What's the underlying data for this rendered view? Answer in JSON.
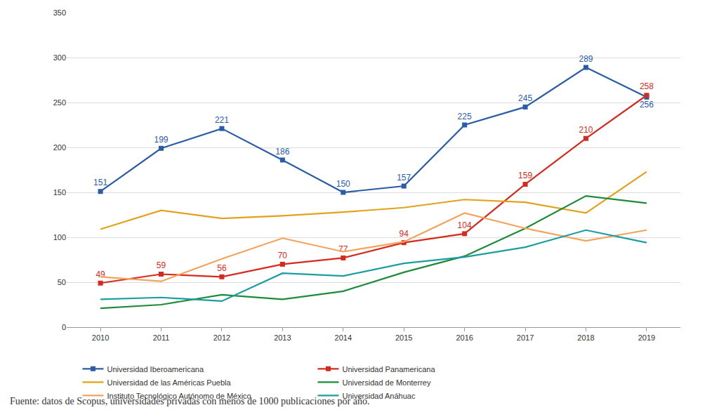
{
  "chart_data": {
    "type": "line",
    "categories": [
      "2010",
      "2011",
      "2012",
      "2013",
      "2014",
      "2015",
      "2016",
      "2017",
      "2018",
      "2019"
    ],
    "series": [
      {
        "name": "Universidad Iberoamericana",
        "color": "#2a5ca8",
        "marker": "square",
        "data_labels": true,
        "values": [
          151,
          199,
          221,
          186,
          150,
          157,
          225,
          245,
          289,
          256
        ]
      },
      {
        "name": "Universidad Panamericana",
        "color": "#d52b1e",
        "marker": "square",
        "data_labels": true,
        "values": [
          49,
          59,
          56,
          70,
          77,
          94,
          104,
          159,
          210,
          258
        ]
      },
      {
        "name": "Universidad de las Américas Puebla",
        "color": "#e3a21a",
        "marker": "none",
        "data_labels": false,
        "values": [
          109,
          130,
          121,
          124,
          128,
          133,
          142,
          139,
          127,
          173
        ]
      },
      {
        "name": "Universidad de Monterrey",
        "color": "#1e8a3a",
        "marker": "none",
        "data_labels": false,
        "values": [
          21,
          25,
          36,
          31,
          40,
          61,
          79,
          110,
          146,
          138
        ]
      },
      {
        "name": "Instituto Tecnológico Autónomo de México",
        "color": "#f5a35c",
        "marker": "none",
        "data_labels": false,
        "values": [
          56,
          51,
          76,
          99,
          84,
          95,
          127,
          110,
          96,
          108
        ]
      },
      {
        "name": "Universidad Anáhuac",
        "color": "#1a9ea0",
        "marker": "none",
        "data_labels": false,
        "values": [
          31,
          33,
          29,
          60,
          57,
          71,
          78,
          89,
          108,
          94
        ]
      }
    ],
    "ylim": [
      0,
      350
    ],
    "yticks": [
      0,
      50,
      100,
      150,
      200,
      250,
      300,
      350
    ],
    "grid": true,
    "legend": "bottom",
    "source": "Fuente: datos de Scopus, universidades privadas con menos de 1000 publicaciones por año."
  }
}
